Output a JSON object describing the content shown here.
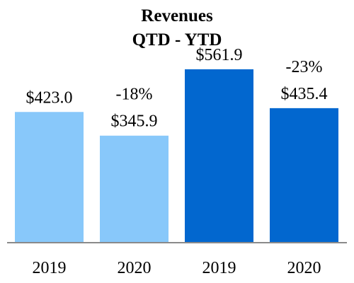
{
  "chart_data": {
    "type": "bar",
    "title": [
      "Revenues",
      "QTD - YTD"
    ],
    "xlabel": "",
    "ylabel": "",
    "ylim": [
      0,
      640
    ],
    "grid": false,
    "legend": "none",
    "categories": [
      "2019",
      "2020",
      "2019",
      "2020"
    ],
    "values": [
      423.0,
      345.9,
      561.9,
      435.4
    ],
    "value_labels": [
      "$423.0",
      "$345.9",
      "$561.9",
      "$435.4"
    ],
    "change_labels": [
      "",
      "-18%",
      "",
      "-23%"
    ],
    "groups": [
      "QTD",
      "QTD",
      "YTD",
      "YTD"
    ],
    "colors": [
      "#88c8fa",
      "#88c8fa",
      "#0267cf",
      "#0267cf"
    ],
    "axis_color": "#8a8a8a"
  }
}
